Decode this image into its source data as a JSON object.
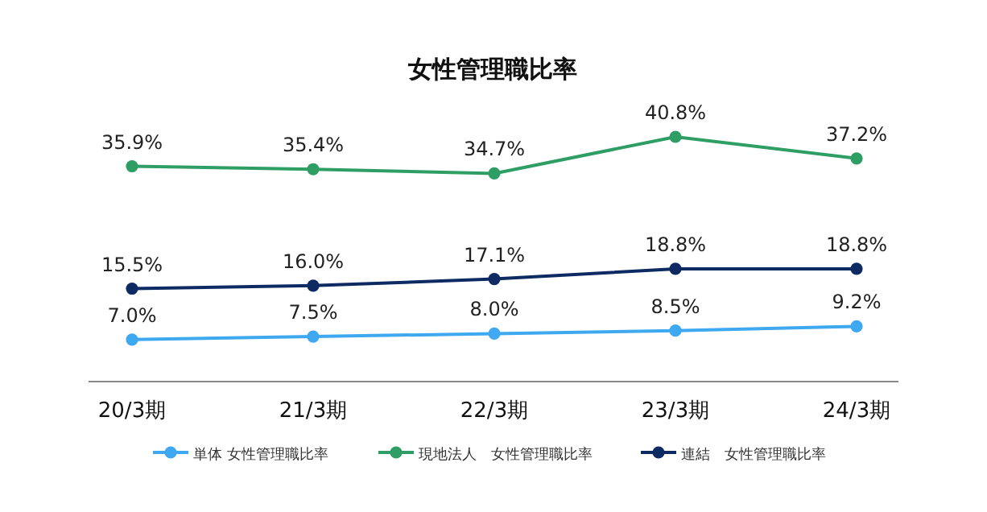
{
  "chart_data": {
    "type": "line",
    "title": "女性管理職比率",
    "categories": [
      "20/3期",
      "21/3期",
      "22/3期",
      "23/3期",
      "24/3期"
    ],
    "series": [
      {
        "name": "単体 女性管理職比率",
        "color": "#3ea8f0",
        "values": [
          7.0,
          7.5,
          8.0,
          8.5,
          9.2
        ],
        "value_labels": [
          "7.0%",
          "7.5%",
          "8.0%",
          "8.5%",
          "9.2%"
        ]
      },
      {
        "name": "現地法人　女性管理職比率",
        "color": "#2e9e64",
        "values": [
          35.9,
          35.4,
          34.7,
          40.8,
          37.2
        ],
        "value_labels": [
          "35.9%",
          "35.4%",
          "34.7%",
          "40.8%",
          "37.2%"
        ]
      },
      {
        "name": "連結　女性管理職比率",
        "color": "#0d2a63",
        "values": [
          15.5,
          16.0,
          17.1,
          18.8,
          18.8
        ],
        "value_labels": [
          "15.5%",
          "16.0%",
          "17.1%",
          "18.8%",
          "18.8%"
        ]
      }
    ],
    "tick_labels": "x",
    "legend": "bottom",
    "marker": "circle"
  }
}
